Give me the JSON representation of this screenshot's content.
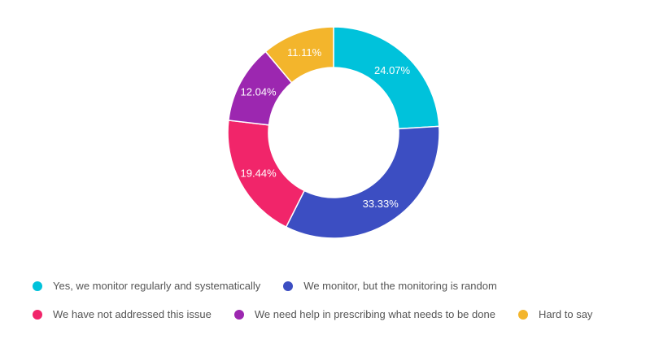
{
  "chart_data": {
    "type": "pie",
    "variant": "donut",
    "title": "",
    "slices": [
      {
        "label": "Yes, we monitor regularly and systematically",
        "value": 24.07,
        "display": "24.07%",
        "color": "#00C2DB"
      },
      {
        "label": "We monitor, but the monitoring is random",
        "value": 33.33,
        "display": "33.33%",
        "color": "#3C4EC2"
      },
      {
        "label": "We have not addressed this issue",
        "value": 19.44,
        "display": "19.44%",
        "color": "#F1256A"
      },
      {
        "label": "We need help in prescribing what needs to be done",
        "value": 12.04,
        "display": "12.04%",
        "color": "#9C27B0"
      },
      {
        "label": "Hard to say",
        "value": 11.11,
        "display": "11.11%",
        "color": "#F3B52C"
      }
    ],
    "legend_position": "bottom"
  }
}
